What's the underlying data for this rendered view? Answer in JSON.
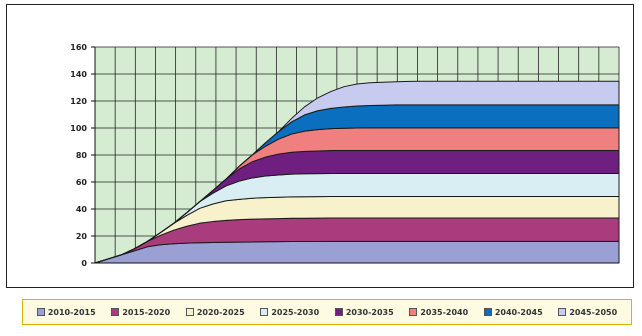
{
  "chart_data": {
    "type": "area",
    "stacked": true,
    "x": [
      0,
      1,
      2,
      3,
      4,
      5,
      6,
      7,
      8,
      9,
      10,
      11,
      12,
      13,
      14,
      15,
      16,
      17,
      18,
      19,
      20,
      21,
      22,
      23,
      24,
      25,
      26,
      27,
      28,
      29,
      30,
      31,
      32,
      33,
      34,
      35,
      36,
      37,
      38,
      39,
      40
    ],
    "xlabel": "",
    "ylabel": "",
    "ylim": [
      0,
      160
    ],
    "yticks": [
      0,
      20,
      40,
      60,
      80,
      100,
      120,
      140,
      160
    ],
    "grid": true,
    "legend_position": "bottom",
    "series": [
      {
        "name": "2010-2015",
        "color": "#9a9fd4",
        "values": [
          0,
          3,
          6,
          9,
          12,
          13.5,
          14.3,
          14.7,
          15,
          15.2,
          15.4,
          15.5,
          15.6,
          15.7,
          15.8,
          15.9,
          15.9,
          15.9,
          16,
          16,
          16,
          16,
          16,
          16,
          16,
          16,
          16,
          16,
          16,
          16,
          16,
          16,
          16,
          16,
          16,
          16,
          16,
          16,
          16,
          16,
          16
        ]
      },
      {
        "name": "2015-2020",
        "color": "#a83c7c",
        "values": [
          0,
          0,
          0,
          1.5,
          4,
          7,
          10,
          12.5,
          14.5,
          15.5,
          16.2,
          16.6,
          16.9,
          17,
          17.1,
          17.2,
          17.2,
          17.3,
          17.3,
          17.3,
          17.3,
          17.3,
          17.3,
          17.3,
          17.3,
          17.3,
          17.3,
          17.3,
          17.3,
          17.3,
          17.3,
          17.3,
          17.3,
          17.3,
          17.3,
          17.3,
          17.3,
          17.3,
          17.3,
          17.3,
          17.3
        ]
      },
      {
        "name": "2020-2025",
        "color": "#f8f2cc",
        "values": [
          0,
          0,
          0,
          0,
          0,
          2,
          5,
          8,
          11,
          13,
          14.5,
          15,
          15.5,
          15.7,
          15.8,
          15.9,
          16,
          16,
          16,
          16,
          16,
          16,
          16,
          16,
          16,
          16,
          16,
          16,
          16,
          16,
          16,
          16,
          16,
          16,
          16,
          16,
          16,
          16,
          16,
          16,
          16
        ]
      },
      {
        "name": "2025-2030",
        "color": "#d8eef2",
        "values": [
          0,
          0,
          0,
          0,
          0,
          0,
          0,
          2,
          5,
          8,
          11,
          13.5,
          15,
          16,
          16.5,
          16.8,
          17,
          17,
          17,
          17,
          17,
          17,
          17,
          17,
          17,
          17,
          17,
          17,
          17,
          17,
          17,
          17,
          17,
          17,
          17,
          17,
          17,
          17,
          17,
          17,
          17
        ]
      },
      {
        "name": "2030-2035",
        "color": "#6e1f80",
        "values": [
          0,
          0,
          0,
          0,
          0,
          0,
          0,
          0,
          0,
          2,
          5,
          9,
          12,
          14,
          15.5,
          16.2,
          16.6,
          16.8,
          17,
          17,
          17,
          17,
          17,
          17,
          17,
          17,
          17,
          17,
          17,
          17,
          17,
          17,
          17,
          17,
          17,
          17,
          17,
          17,
          17,
          17,
          17
        ]
      },
      {
        "name": "2035-2040",
        "color": "#f08080",
        "values": [
          0,
          0,
          0,
          0,
          0,
          0,
          0,
          0,
          0,
          0,
          0,
          2,
          5,
          8,
          11,
          13.5,
          15,
          15.8,
          16.2,
          16.5,
          16.7,
          16.8,
          16.8,
          16.8,
          16.8,
          16.8,
          16.8,
          16.8,
          16.8,
          16.8,
          16.8,
          16.8,
          16.8,
          16.8,
          16.8,
          16.8,
          16.8,
          16.8,
          16.8,
          16.8,
          16.8
        ]
      },
      {
        "name": "2040-2045",
        "color": "#0a6fbf",
        "values": [
          0,
          0,
          0,
          0,
          0,
          0,
          0,
          0,
          0,
          0,
          0,
          0,
          0,
          2.5,
          5.5,
          9,
          12,
          14,
          15,
          15.8,
          16.3,
          16.6,
          16.8,
          17,
          17,
          17,
          17,
          17,
          17,
          17,
          17,
          17,
          17,
          17,
          17,
          17,
          17,
          17,
          17,
          17,
          17
        ]
      },
      {
        "name": "2045-2050",
        "color": "#c6cbef",
        "values": [
          0,
          0,
          0,
          0,
          0,
          0,
          0,
          0,
          0,
          0,
          0,
          0,
          0,
          0,
          0,
          2.5,
          6,
          9.5,
          12.5,
          15,
          16.3,
          16.8,
          17,
          17.2,
          17.4,
          17.5,
          17.5,
          17.5,
          17.5,
          17.5,
          17.5,
          17.5,
          17.5,
          17.5,
          17.5,
          17.5,
          17.5,
          17.5,
          17.5,
          17.5,
          17.5
        ]
      }
    ],
    "colors": {
      "plot_bg": "#d6ecd2",
      "grid": "#222222",
      "legend_bg": "#fffbe2",
      "legend_border": "#d9b300"
    }
  }
}
